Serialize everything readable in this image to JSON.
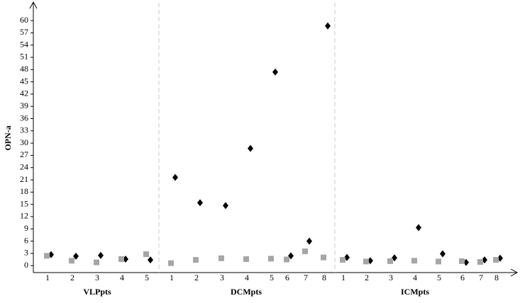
{
  "chart_data": {
    "type": "scatter",
    "y_label": "OPN-a",
    "ylim": [
      -1.7,
      64
    ],
    "yticks": [
      0,
      3,
      6,
      9,
      12,
      15,
      18,
      21,
      24,
      27,
      30,
      33,
      36,
      39,
      42,
      45,
      48,
      51,
      54,
      57,
      60
    ],
    "groups": [
      {
        "label": "VLPpts",
        "categories": [
          "1",
          "2",
          "3",
          "4",
          "5"
        ],
        "series": [
          {
            "color": "#000000",
            "marker": "diamond",
            "values": [
              2.7,
              2.3,
              2.5,
              1.6,
              1.4
            ]
          },
          {
            "color": "#a6a6a6",
            "marker": "square",
            "values": [
              2.4,
              1.2,
              0.8,
              1.6,
              2.8
            ]
          }
        ]
      },
      {
        "label": "DCMpts",
        "categories": [
          "1",
          "2",
          "3",
          "4",
          "5",
          "6",
          "7",
          "8"
        ],
        "series": [
          {
            "color": "#000000",
            "marker": "diamond",
            "values": [
              21.6,
              15.4,
              14.7,
              28.7,
              47.4,
              2.4,
              6.0,
              58.7
            ]
          },
          {
            "color": "#a6a6a6",
            "marker": "square",
            "values": [
              0.6,
              1.4,
              1.8,
              1.6,
              1.7,
              1.5,
              3.5,
              2.0
            ]
          }
        ]
      },
      {
        "label": "ICMpts",
        "categories": [
          "1",
          "2",
          "3",
          "4",
          "5",
          "6",
          "7",
          "8"
        ],
        "series": [
          {
            "color": "#000000",
            "marker": "diamond",
            "values": [
              2.0,
              1.2,
              1.9,
              9.3,
              2.9,
              0.8,
              1.4,
              1.8
            ]
          },
          {
            "color": "#a6a6a6",
            "marker": "square",
            "values": [
              1.4,
              1.0,
              1.1,
              1.2,
              1.0,
              1.1,
              0.9,
              1.4
            ]
          }
        ]
      }
    ]
  }
}
